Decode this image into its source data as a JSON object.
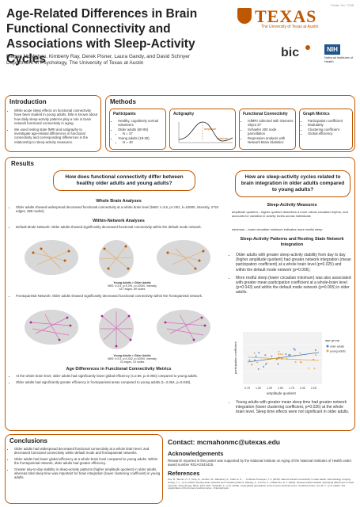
{
  "header": {
    "title": "Age-Related Differences in Brain Functional Connectivity and Associations with Sleep-Activity Cycles",
    "authors": "Megan McMahon, Kimberly Ray, Derek Pisner, Laura Gandy, and David Schnyer",
    "department": "Department of Psychology, The University of Texas at Austin",
    "poster_no": "Poster No: T238",
    "ut_word": "TEXAS",
    "ut_sub": "The University of Texas at Austin",
    "bic": "bic",
    "nih": "NIH",
    "nih_sub": "National Institutes of Health"
  },
  "intro": {
    "title": "Introduction",
    "bullets": [
      "While acute sleep effects on functional connectivity have been studied in young adults, little is known about how daily sleep-activity patterns play a role in brain network functional connectivity in aging.",
      "We used resting state fMRI and actigraphy to investigate age-related differences in functional connectivity and corresponding differences in the relationship to sleep-activity measures."
    ]
  },
  "methods": {
    "title": "Methods",
    "participants": {
      "heading": "Participants",
      "items": [
        "Healthy, cognitively normal volunteers",
        "Older adults (60-90)",
        "N = 37",
        "Young adults (18-30)",
        "N = 40"
      ]
    },
    "actigraphy": {
      "heading": "Actigraphy",
      "amplitude": "amplitude",
      "minimum": "minimum"
    },
    "fc": {
      "heading": "Functional Connectivity",
      "items": [
        "rsfMRI collected with Siemens Skyra 3T",
        "Schaefer 400 node parcellation",
        "Regression analysis with Network Brain Statistics"
      ]
    },
    "graph": {
      "heading": "Graph Metrics",
      "items": [
        "Participation coefficient",
        "Modularity",
        "Clustering coefficient",
        "Global efficiency"
      ]
    }
  },
  "results": {
    "title": "Results",
    "q1": "How does functional connectivity differ between healthy older adults and young adults?",
    "q2": "How are sleep-activity cycles related to brain integration in older adults compared to young adults?",
    "wb_head": "Whole Brain Analyses",
    "wb_bullet": "Older adults showed widespread decreased functional connectivity at a whole brain level (NBS: t=3.5, p<.001, k=10000, intensity, 2722 edges, 359 nodes).",
    "wn_head": "Within-Network Analyses",
    "dmn_bullet": "Default Mode Network: Older adults showed significantly decreased functional connectivity within the default mode network.",
    "fig1_caption": [
      "Young Adults > Older Adults",
      "NBS: t=3.5, p<0.001, k=10000, intensity",
      "617 edges, 89 nodes"
    ],
    "fp_bullet": "Frontoparietal Network: Older adults showed significantly decreased functional connectivity within the frontoparietal network.",
    "fig2_caption": [
      "Young Adults > Older Adults",
      "NBS: t=3.5, p=0.042, k=10000, intensity",
      "31 edges, 23 nodes"
    ],
    "metrics_head": "Age Differences in Functional Connectivity Metrics",
    "metrics_bullets": [
      "At the whole brain level, older adults had significantly lower global efficiency (t=2.86, p=0.006) compared to young adults.",
      "Older adults had significantly greater efficiency in frontoparietal areas compared to young adults (t=-2.064, p=0.048)."
    ],
    "sam_head": "Sleep-Activity Measures",
    "sam_amp": "amplitude quotient – higher quotient describes a more robust circadian rhythm, and accounts for variation in activity levels across individuals",
    "sam_min": "minimum – lower circadian minimum indicates more restful sleep",
    "sap_head": "Sleep-Activity Patterns and Resting State Network Integration",
    "right_bullets": [
      "Older adults with greater sleep-activity stability from day to day (higher amplitude quotient) had greater network integration (mean participation coefficient) at a whole brain level (p=0.025) and within the default mode network (p=0.006).",
      "More restful sleep (lower circadian minimum) was also associated with greater mean participation coefficient at a whole-brain level (p=0.043) and within the default mode network (p=0.005) in older adults.",
      "Young adults with greater mean sleep time had greater network integration (lower clustering coefficient, p=0.026) at the whole brain level. Sleep time effects were not significant in older adults."
    ],
    "scatter": {
      "ylabel": "participation coefficient",
      "xlabel": "amplitude quotient",
      "xticks": [
        "0.75",
        "1.00",
        "1.25",
        "1.50",
        "1.75",
        "2.00",
        "2.25"
      ],
      "legend_title": "age group",
      "legend": [
        "older adults",
        "young adults"
      ]
    }
  },
  "colors": {
    "accent": "#bf5700",
    "older": "#4a7fb5",
    "young": "#e8a33d"
  },
  "conclusions": {
    "title": "Conclusions",
    "bullets": [
      "Older adults had widespread decreased functional connectivity at a whole brain level, and decreased functional connectivity within default mode and frontoparietal networks.",
      "Older adults had lower global efficiency at a whole brain level compared to young adults. Within the frontoparietal network, older adults had greater efficiency.",
      "Greater day-to-day stability in sleep-activity patterns (higher amplitude quotient) in older adults, whereas total sleep time was important for brain integration (lower clustering coefficient) in young adults."
    ]
  },
  "contact": "Contact: mcmahonmc@utexas.edu",
  "ack_title": "Acknowledgements",
  "ack": "Research reported in this poster was supported by the National Institute on Aging of the National Institutes of Health under award number R01AG043425.",
  "ref_title": "References",
  "refs": "Cox, R., Blumin, N. T., Gray, D., Gordon, M., Rainsbury, A., Clark, E. K., ... & Wrede-Trevelyan, T. V. (2018). Altered network connectivity in older adults. Neurobiology of Aging. Huang, J. L., et al. (2019). Resting-state networks and circadian patterns. Zalesky, A., Fornito, A., & Bullmore, E. T. (2010). Network-based statistic: identifying differences in brain networks. NeuroImage, 53(4), 1197-1207. Schaefer, A., et al. (2018). Local-global parcellation of the human cerebral cortex. Cerebral Cortex. Yeo, B. T., et al. (2011). The organization of the human cerebral cortex. J Neurophysiol."
}
